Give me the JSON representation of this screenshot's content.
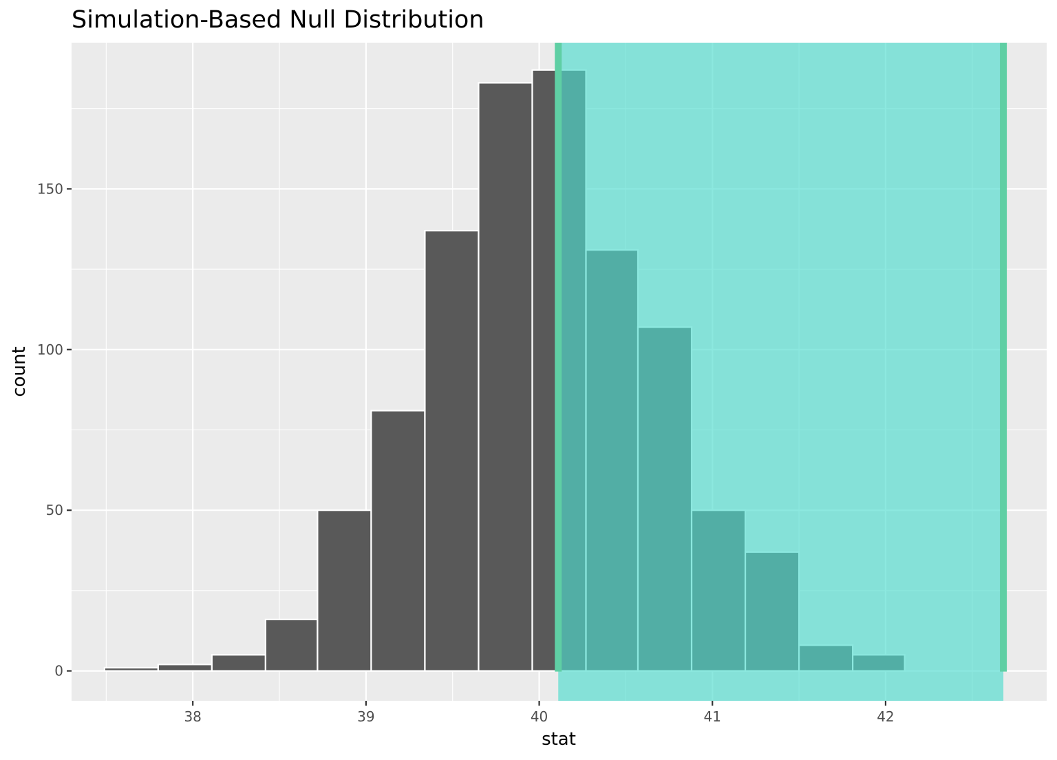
{
  "chart_data": {
    "type": "histogram",
    "title": "Simulation-Based Null Distribution",
    "xlabel": "stat",
    "ylabel": "count",
    "xlim": [
      37.3,
      42.93
    ],
    "ylim": [
      -9.3,
      195.5
    ],
    "x_ticks": [
      38,
      39,
      40,
      41,
      42
    ],
    "y_ticks": [
      0,
      50,
      100,
      150
    ],
    "grid": true,
    "bin_width": 0.3083,
    "bins": [
      {
        "x0": 37.49,
        "x1": 37.8,
        "count": 1
      },
      {
        "x0": 37.8,
        "x1": 38.11,
        "count": 2
      },
      {
        "x0": 38.11,
        "x1": 38.42,
        "count": 5
      },
      {
        "x0": 38.42,
        "x1": 38.72,
        "count": 16
      },
      {
        "x0": 38.72,
        "x1": 39.03,
        "count": 50
      },
      {
        "x0": 39.03,
        "x1": 39.34,
        "count": 81
      },
      {
        "x0": 39.34,
        "x1": 39.65,
        "count": 137
      },
      {
        "x0": 39.65,
        "x1": 39.96,
        "count": 183
      },
      {
        "x0": 39.96,
        "x1": 40.27,
        "count": 187
      },
      {
        "x0": 40.27,
        "x1": 40.57,
        "count": 131
      },
      {
        "x0": 40.57,
        "x1": 40.88,
        "count": 107
      },
      {
        "x0": 40.88,
        "x1": 41.19,
        "count": 50
      },
      {
        "x0": 41.19,
        "x1": 41.5,
        "count": 37
      },
      {
        "x0": 41.5,
        "x1": 41.81,
        "count": 8
      },
      {
        "x0": 41.81,
        "x1": 42.11,
        "count": 5
      }
    ],
    "shaded_region": {
      "x0": 40.11,
      "x1": 42.68
    },
    "colors": {
      "panel_bg": "#ebebeb",
      "grid": "#ffffff",
      "bar_fill": "#595959",
      "bar_stroke": "#ffffff",
      "shade_fill": "#4fdbce",
      "shade_opacity": 0.65,
      "shade_line": "#5fcfa4"
    }
  }
}
